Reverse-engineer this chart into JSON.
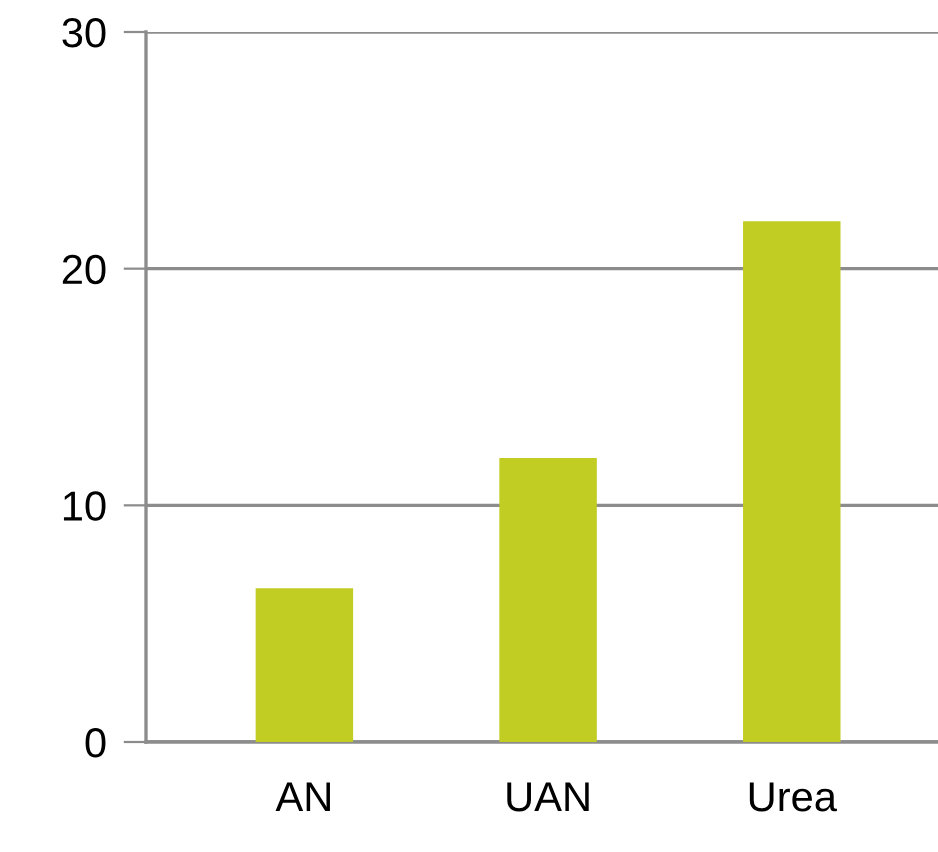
{
  "chart_data": {
    "type": "bar",
    "categories": [
      "AN",
      "UAN",
      "Urea"
    ],
    "values": [
      6.5,
      12,
      22
    ],
    "color": "#c2cd23",
    "ylim": [
      0,
      30
    ],
    "yticks": [
      0,
      10,
      20,
      30
    ],
    "grid": "y"
  }
}
